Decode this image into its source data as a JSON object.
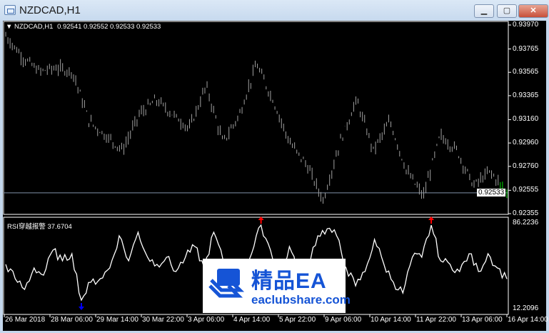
{
  "window": {
    "title": "NZDCAD,H1",
    "buttons": {
      "minimize": "▁",
      "maximize": "▢",
      "close": "✕"
    }
  },
  "main_chart": {
    "header_symbol": "NZDCAD,H1",
    "ohlc": "0.92541 0.92552 0.92533 0.92533",
    "current_price": "0.92533",
    "price_ticks": [
      "0.93970",
      "0.93765",
      "0.93565",
      "0.93365",
      "0.93160",
      "0.92960",
      "0.92760",
      "0.92555",
      "0.92355"
    ]
  },
  "rsi_panel": {
    "label": "RSI穿越报警 37.6704",
    "max_label": "86.2236",
    "min_label": "12.2096"
  },
  "time_axis": [
    "26 Mar 2018",
    "28 Mar 06:00",
    "29 Mar 14:00",
    "30 Mar 22:00",
    "3 Apr 06:00",
    "4 Apr 14:00",
    "5 Apr 22:00",
    "9 Apr 06:00",
    "10 Apr 14:00",
    "11 Apr 22:00",
    "13 Apr 06:00",
    "16 Apr 14:00"
  ],
  "watermark": {
    "name": "精品EA",
    "url": "eaclubshare.com"
  },
  "colors": {
    "bars": "#a0a0a0",
    "last_bars": "#00e000",
    "rsi_line": "#ffffff",
    "arrow_up": "#ff0000",
    "arrow_down": "#0000ff",
    "watermark": "#1554d6"
  },
  "chart_data": [
    {
      "type": "ohlc",
      "series": [
        {
          "name": "NZDCAD,H1",
          "approx_close_path": [
            0.93878,
            0.93695,
            0.93572,
            0.93603,
            0.93572,
            0.93144,
            0.93022,
            0.92899,
            0.93205,
            0.93328,
            0.93205,
            0.93083,
            0.9345,
            0.92961,
            0.93205,
            0.93634,
            0.93328,
            0.92961,
            0.92777,
            0.92471,
            0.92961,
            0.93328,
            0.92899,
            0.93144,
            0.92716,
            0.92502,
            0.93022,
            0.92899,
            0.92594,
            0.92716,
            0.92533
          ]
        }
      ],
      "ylim": [
        0.92355,
        0.9397
      ]
    },
    {
      "type": "line",
      "series": [
        {
          "name": "RSI穿越报警",
          "values": [
            50.13,
            37.9,
            28.7,
            47.07,
            40.96,
            62.4,
            53.19,
            59.3,
            19.55,
            34.84,
            37.9,
            47.07,
            74.6,
            53.19,
            77.66,
            56.25,
            50.13,
            56.25,
            44.01,
            56.25,
            65.42,
            47.07,
            77.66,
            53.19,
            31.78,
            44.01,
            59.3,
            83.77,
            62.4,
            37.9,
            65.42,
            40.96,
            53.19,
            74.6,
            80.7,
            74.6,
            47.07,
            31.78,
            44.01,
            71.5,
            50.13,
            34.84,
            25.66,
            56.25,
            56.25,
            83.77,
            53.19,
            50.13,
            44.01,
            59.3,
            44.01,
            59.3,
            47.07,
            37.67
          ]
        }
      ],
      "ylim": [
        12.2096,
        86.2236
      ],
      "signals": [
        {
          "type": "down",
          "index": 8
        },
        {
          "type": "up",
          "index": 27
        },
        {
          "type": "up",
          "index": 45
        }
      ]
    }
  ]
}
